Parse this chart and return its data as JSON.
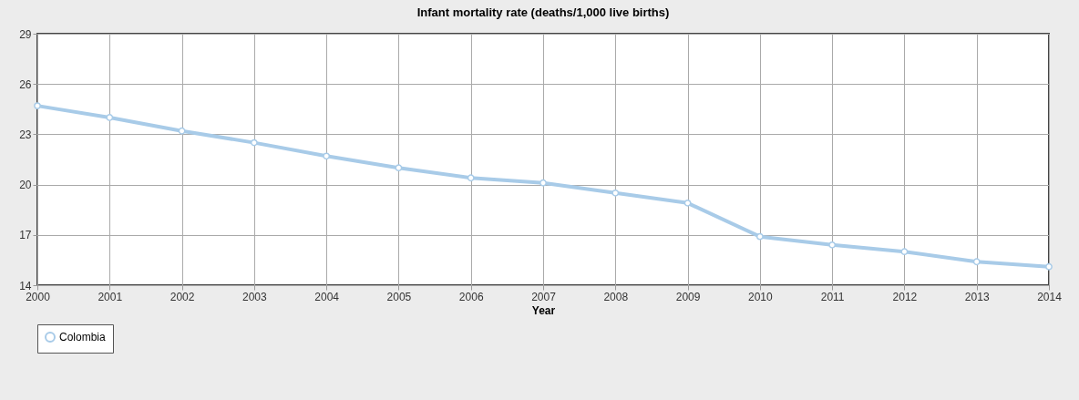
{
  "chart_data": {
    "type": "line",
    "title": "Infant mortality rate (deaths/1,000 live births)",
    "xlabel": "Year",
    "x": [
      2000,
      2001,
      2002,
      2003,
      2004,
      2005,
      2006,
      2007,
      2008,
      2009,
      2010,
      2011,
      2012,
      2013,
      2014
    ],
    "series": [
      {
        "name": "Colombia",
        "color": "#a8cbe8",
        "values": [
          24.7,
          24.0,
          23.2,
          22.5,
          21.7,
          21.0,
          20.4,
          20.1,
          19.5,
          18.9,
          16.9,
          16.4,
          16.0,
          15.4,
          15.1
        ]
      }
    ],
    "xlim": [
      2000,
      2014
    ],
    "xticks": [
      2000,
      2001,
      2002,
      2003,
      2004,
      2005,
      2006,
      2007,
      2008,
      2009,
      2010,
      2011,
      2012,
      2013,
      2014
    ],
    "ylim": [
      14,
      29
    ],
    "yticks": [
      14,
      17,
      20,
      23,
      26,
      29
    ],
    "grid": true,
    "legend": "bottom",
    "marker": "circle",
    "line_style": "solid"
  }
}
